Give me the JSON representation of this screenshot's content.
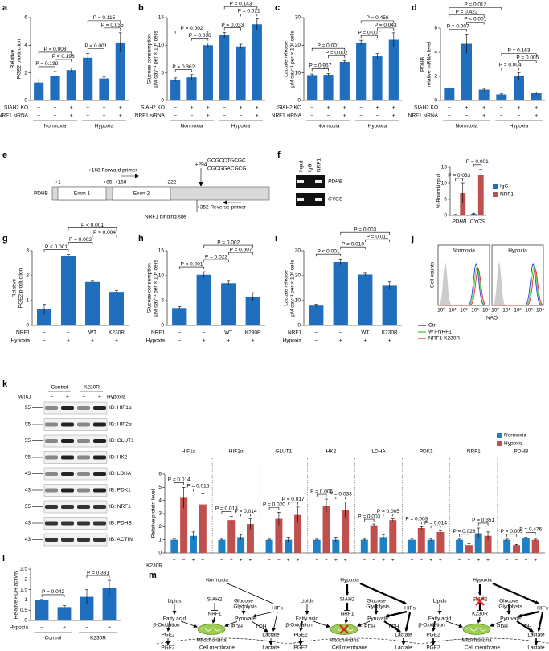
{
  "panel_labels": [
    "a",
    "b",
    "c",
    "d",
    "e",
    "f",
    "g",
    "h",
    "i",
    "j",
    "k",
    "l",
    "m"
  ],
  "chart_data": [
    {
      "type": "bar",
      "ylabel": [
        "Relative",
        "PGE2 production"
      ],
      "color": "#1f6fbe",
      "values": [
        1.3,
        1.75,
        2.2,
        3.1,
        1.6,
        4.2
      ],
      "errors": [
        0.2,
        0.35,
        0.15,
        0.3,
        0.1,
        0.7
      ],
      "ylim": [
        0,
        6
      ],
      "yticks": [
        0,
        2,
        4,
        6
      ],
      "conditions": [
        {
          "label": "SIAH2 KO",
          "signs": [
            "−",
            "+",
            "+",
            "−",
            "+",
            "+"
          ]
        },
        {
          "label": "NRF1 siRNA",
          "signs": [
            "−",
            "−",
            "+",
            "−",
            "−",
            "+"
          ]
        }
      ],
      "groups": [
        "Normoxia",
        "Hypoxia"
      ],
      "brackets": [
        {
          "label": "P = 0.198",
          "from": 0,
          "to": 1
        },
        {
          "label": "P = 0.198",
          "from": 1,
          "to": 2
        },
        {
          "label": "P = 0.008",
          "from": 0,
          "to": 2
        },
        {
          "label": "P < 0.001",
          "from": 3,
          "to": 4
        },
        {
          "label": "P = 0.035",
          "from": 4,
          "to": 5
        },
        {
          "label": "P = 0.115",
          "from": 3,
          "to": 5
        }
      ]
    },
    {
      "type": "bar",
      "ylabel": [
        "Glucose consumption",
        "μM day⁻¹ per × 10⁶ cells"
      ],
      "color": "#1f6fbe",
      "values": [
        3.8,
        4.2,
        10,
        11.8,
        9.8,
        13.8
      ],
      "errors": [
        0.3,
        0.5,
        0.4,
        0.5,
        0.4,
        1
      ],
      "ylim": [
        0,
        15
      ],
      "yticks": [
        0,
        5,
        10,
        15
      ],
      "conditions": [
        {
          "label": "SIAH2 KO",
          "signs": [
            "−",
            "+",
            "+",
            "−",
            "+",
            "+"
          ]
        },
        {
          "label": "NRF1 siRNA",
          "signs": [
            "−",
            "−",
            "+",
            "−",
            "−",
            "+"
          ]
        }
      ],
      "groups": [
        "Normoxia",
        "Hypoxia"
      ],
      "brackets": [
        {
          "label": "P = 0.362",
          "from": 0,
          "to": 1
        },
        {
          "label": "P = 0.036",
          "from": 1,
          "to": 2
        },
        {
          "label": "P = 0.002",
          "from": 0,
          "to": 2
        },
        {
          "label": "P = 0.033",
          "from": 3,
          "to": 4
        },
        {
          "label": "P = 0.021",
          "from": 4,
          "to": 5
        },
        {
          "label": "P = 0.143",
          "from": 3,
          "to": 5
        }
      ]
    },
    {
      "type": "bar",
      "ylabel": [
        "Lactate release",
        "μM day⁻¹ per × 10⁶ cells"
      ],
      "color": "#1f6fbe",
      "values": [
        9.2,
        9.3,
        14,
        21,
        16,
        22
      ],
      "errors": [
        0.4,
        0.5,
        0.5,
        0.8,
        1,
        2.5
      ],
      "ylim": [
        0,
        30
      ],
      "yticks": [
        0,
        10,
        20,
        30
      ],
      "conditions": [
        {
          "label": "SIAH2 KO",
          "signs": [
            "−",
            "+",
            "+",
            "−",
            "+",
            "+"
          ]
        },
        {
          "label": "NRF1 siRNA",
          "signs": [
            "−",
            "−",
            "+",
            "−",
            "−",
            "+"
          ]
        }
      ],
      "groups": [
        "Normoxia",
        "Hypoxia"
      ],
      "brackets": [
        {
          "label": "P = 0.967",
          "from": 0,
          "to": 1
        },
        {
          "label": "P = 0.002",
          "from": 1,
          "to": 2
        },
        {
          "label": "P = 0.001",
          "from": 0,
          "to": 2
        },
        {
          "label": "P = 0.007",
          "from": 3,
          "to": 4
        },
        {
          "label": "P = 0.043",
          "from": 4,
          "to": 5
        },
        {
          "label": "P = 0.456",
          "from": 3,
          "to": 5
        }
      ]
    },
    {
      "type": "bar",
      "ylabel": [
        "PDHB",
        "relative mRNA level"
      ],
      "color": "#1f6fbe",
      "values": [
        1,
        4.7,
        0.9,
        0.5,
        2,
        0.6
      ],
      "errors": [
        0.05,
        0.8,
        0.1,
        0.05,
        0.3,
        0.1
      ],
      "ylim": [
        0,
        6
      ],
      "yticks": [
        0,
        2,
        4,
        6
      ],
      "conditions": [
        {
          "label": "SIAH2 KO",
          "signs": [
            "−",
            "+",
            "+",
            "−",
            "+",
            "+"
          ]
        },
        {
          "label": "NRF1 siRNA",
          "signs": [
            "−",
            "−",
            "+",
            "−",
            "−",
            "+"
          ]
        }
      ],
      "groups": [
        "Normoxia",
        "Hypoxia"
      ],
      "brackets": [
        {
          "label": "P = 0.007",
          "from": 0,
          "to": 1
        },
        {
          "label": "P < 0.001",
          "from": 1,
          "to": 2
        },
        {
          "label": "P = 0.422",
          "from": 0,
          "to": 2
        },
        {
          "label": "P = 0.012",
          "from": 0,
          "to": 3
        },
        {
          "label": "P = 0.004",
          "from": 3,
          "to": 4
        },
        {
          "label": "P = 0.005",
          "from": 4,
          "to": 5
        },
        {
          "label": "P = 0.163",
          "from": 3,
          "to": 5
        }
      ]
    },
    {
      "type": "grouped_bar",
      "ylabel": [
        "% Bound/input"
      ],
      "ylim": [
        0,
        15
      ],
      "yticks": [
        0,
        5,
        10,
        15
      ],
      "legend": "right",
      "group_labels": "bottom",
      "separators": false,
      "series": [
        {
          "name": "IgG",
          "color": "#1f6fbe"
        },
        {
          "name": "NRF1",
          "color": "#c0504d"
        }
      ],
      "groups": [
        {
          "label": "PDHB",
          "values": [
            0.2,
            7
          ],
          "errors": [
            0.1,
            3
          ],
          "brackets": [
            {
              "label": "P = 0.033",
              "from": 0,
              "to": 1
            }
          ]
        },
        {
          "label": "CYCS",
          "values": [
            0.5,
            12.5
          ],
          "errors": [
            0.2,
            1.8
          ],
          "brackets": [
            {
              "label": "P = 0.001",
              "from": 0,
              "to": 1
            }
          ]
        }
      ]
    },
    {
      "type": "bar",
      "ylabel": [
        "Relative",
        "PGE2 production"
      ],
      "color": "#1f6fbe",
      "values": [
        0.65,
        2.8,
        1.75,
        1.35
      ],
      "errors": [
        0.2,
        0.05,
        0.03,
        0.05
      ],
      "ylim": [
        0,
        3
      ],
      "yticks": [
        0,
        1,
        2,
        3
      ],
      "conditions": [
        {
          "label": "NRF1",
          "signs": [
            "−",
            "−",
            "WT",
            "K230R"
          ]
        },
        {
          "label": "Hypoxia",
          "signs": [
            "−",
            "+",
            "+",
            "+"
          ]
        }
      ],
      "brackets": [
        {
          "label": "P < 0.001",
          "from": 0,
          "to": 1
        },
        {
          "label": "P = 0.002",
          "from": 1,
          "to": 2
        },
        {
          "label": "P = 0.004",
          "from": 2,
          "to": 3
        },
        {
          "label": "P < 0.001",
          "from": 1,
          "to": 3
        }
      ]
    },
    {
      "type": "bar",
      "ylabel": [
        "Glucose consumption",
        "μM day⁻¹ per × 10⁶ cells"
      ],
      "color": "#1f6fbe",
      "values": [
        3.5,
        10.2,
        8.5,
        5.8
      ],
      "errors": [
        0.3,
        0.6,
        0.4,
        0.8
      ],
      "ylim": [
        0,
        15
      ],
      "yticks": [
        0,
        5,
        10,
        15
      ],
      "conditions": [
        {
          "label": "NRF1",
          "signs": [
            "−",
            "−",
            "WT",
            "K230R"
          ]
        },
        {
          "label": "Hypoxia",
          "signs": [
            "−",
            "+",
            "+",
            "+"
          ]
        }
      ],
      "brackets": [
        {
          "label": "P < 0.001",
          "from": 0,
          "to": 1
        },
        {
          "label": "P = 0.022",
          "from": 1,
          "to": 2
        },
        {
          "label": "P = 0.007",
          "from": 2,
          "to": 3
        },
        {
          "label": "P = 0.002",
          "from": 1,
          "to": 3
        }
      ]
    },
    {
      "type": "bar",
      "ylabel": [
        "Lactate release",
        "μM day⁻¹ per × 10⁶ cells"
      ],
      "color": "#1f6fbe",
      "values": [
        8,
        25.5,
        20.5,
        16
      ],
      "errors": [
        0.5,
        1.2,
        0.5,
        1.5
      ],
      "ylim": [
        0,
        30
      ],
      "yticks": [
        0,
        10,
        20,
        30
      ],
      "conditions": [
        {
          "label": "NRF1",
          "signs": [
            "−",
            "−",
            "WT",
            "K230R"
          ]
        },
        {
          "label": "Hypoxia",
          "signs": [
            "−",
            "+",
            "+",
            "+"
          ]
        }
      ],
      "brackets": [
        {
          "label": "P < 0.001",
          "from": 0,
          "to": 1
        },
        {
          "label": "P = 0.010",
          "from": 1,
          "to": 2
        },
        {
          "label": "P = 0.011",
          "from": 2,
          "to": 3
        },
        {
          "label": "P = 0.003",
          "from": 1,
          "to": 3
        }
      ]
    },
    {
      "type": "grouped_bar",
      "ylabel": [
        "Relative protein level"
      ],
      "ylim": [
        0,
        6
      ],
      "yticks": [
        0,
        1,
        2,
        3,
        4,
        5,
        6
      ],
      "legend": "top-right",
      "group_labels": "top",
      "separators": true,
      "series": [
        {
          "name": "Normoxia",
          "color": "#1f80c8"
        },
        {
          "name": "Hypoxia",
          "color": "#c0504d"
        }
      ],
      "conditions": [
        {
          "label": "K230R",
          "signs": [
            "−",
            "−",
            "+",
            "+"
          ]
        }
      ],
      "groups": [
        {
          "label": "HIF1α",
          "values": [
            1,
            4.2,
            1.3,
            3.7
          ],
          "errors": [
            0.05,
            0.8,
            0.3,
            0.8
          ],
          "brackets": [
            {
              "label": "P = 0.014",
              "from": 0,
              "to": 1
            },
            {
              "label": "P = 0.015",
              "from": 2,
              "to": 3
            }
          ]
        },
        {
          "label": "HIF2α",
          "values": [
            1,
            2.5,
            1.2,
            2.2
          ],
          "errors": [
            0.05,
            0.3,
            0.2,
            0.4
          ],
          "brackets": [
            {
              "label": "P = 0.013",
              "from": 0,
              "to": 1
            },
            {
              "label": "P = 0.014",
              "from": 2,
              "to": 3
            }
          ]
        },
        {
          "label": "GLUT1",
          "values": [
            1,
            2.6,
            1,
            2.9
          ],
          "errors": [
            0.05,
            0.5,
            0.2,
            0.6
          ],
          "brackets": [
            {
              "label": "P = 0.020",
              "from": 0,
              "to": 1
            },
            {
              "label": "P = 0.017",
              "from": 2,
              "to": 3
            }
          ]
        },
        {
          "label": "HK2",
          "values": [
            1,
            3.6,
            1,
            3.3
          ],
          "errors": [
            0.05,
            0.5,
            0.2,
            0.6
          ],
          "brackets": [
            {
              "label": "P = 0.006",
              "from": 0,
              "to": 1
            },
            {
              "label": "P = 0.033",
              "from": 2,
              "to": 3
            }
          ]
        },
        {
          "label": "LDHA",
          "values": [
            1,
            2.1,
            1.2,
            2.5
          ],
          "errors": [
            0.05,
            0.1,
            0.2,
            0.1
          ],
          "brackets": [
            {
              "label": "P = 0.003",
              "from": 0,
              "to": 1
            },
            {
              "label": "P = 0.005",
              "from": 2,
              "to": 3
            }
          ]
        },
        {
          "label": "PDK1",
          "values": [
            1,
            1.9,
            1,
            1.6
          ],
          "errors": [
            0.05,
            0.1,
            0.1,
            0.1
          ],
          "brackets": [
            {
              "label": "P = 0.003",
              "from": 0,
              "to": 1
            },
            {
              "label": "P = 0.014",
              "from": 2,
              "to": 3
            }
          ]
        },
        {
          "label": "NRF1",
          "values": [
            1,
            0.6,
            1.5,
            1.3
          ],
          "errors": [
            0.05,
            0.1,
            0.4,
            0.3
          ],
          "brackets": [
            {
              "label": "P = 0.026",
              "from": 0,
              "to": 1
            },
            {
              "label": "P = 0.351",
              "from": 2,
              "to": 3
            }
          ]
        },
        {
          "label": "PDHB",
          "values": [
            1,
            0.6,
            1.15,
            1
          ],
          "errors": [
            0.05,
            0.05,
            0.05,
            0.05
          ],
          "brackets": [
            {
              "label": "P = 0.005",
              "from": 0,
              "to": 1
            },
            {
              "label": "P = 0.476",
              "from": 2,
              "to": 3
            }
          ]
        }
      ]
    },
    {
      "type": "bar",
      "ylabel": [
        "Relative PDH activity"
      ],
      "color": "#1f6fbe",
      "values": [
        1,
        0.65,
        1.15,
        1.6
      ],
      "errors": [
        0.02,
        0.08,
        0.35,
        0.35
      ],
      "ylim": [
        0,
        2.5
      ],
      "yticks": [
        0,
        0.5,
        1,
        1.5,
        2,
        2.5
      ],
      "conditions": [
        {
          "label": "Hypoxia",
          "signs": [
            "−",
            "+",
            "−",
            "+"
          ]
        }
      ],
      "groups": [
        "Control",
        "K230R"
      ],
      "brackets": [
        {
          "label": "P = 0.042",
          "from": 0,
          "to": 1
        },
        {
          "label": "P = 0.381",
          "from": 2,
          "to": 3
        }
      ]
    }
  ],
  "e": {
    "gene": "PDHB",
    "positions": [
      "+1",
      "+85",
      "+168",
      "+222",
      "+294"
    ],
    "exons": [
      "Exon 1",
      "Exon 2"
    ],
    "forward_primer": "+168 Forward primer",
    "sequence": [
      "GCGCCTGCGC",
      "CGCGGACGCG"
    ],
    "binding_site": "NRF1 binding site",
    "reverse_primer": "+352 Reverse primer"
  },
  "f_gel": {
    "lanes": [
      "Input",
      "IgG",
      "NRF1"
    ],
    "genes": [
      "PDHB",
      "CYCS"
    ]
  },
  "j": {
    "conditions": [
      "Normoxia",
      "Hypoxia"
    ],
    "ylabel": "Cell counts",
    "xlabel": "NAO",
    "xticks": [
      "10⁰",
      "10¹",
      "10²",
      "10³",
      "10⁴"
    ],
    "legend": [
      {
        "name": "Ctr.",
        "color": "#1b2fd0"
      },
      {
        "name": "WT-NRF1",
        "color": "#2fcc2f"
      },
      {
        "name": "NRF1-K230R",
        "color": "#dd2020"
      }
    ]
  },
  "k_blot": {
    "groups": [
      "Control",
      "K230R"
    ],
    "mr": "Mr(K)",
    "condition": "Hypoxia",
    "signs": [
      "−",
      "+",
      "−",
      "+"
    ],
    "rows": [
      {
        "marker": "95",
        "label": "IB: HIF1α"
      },
      {
        "marker": "95",
        "label": "IB: HIF2α"
      },
      {
        "marker": "55",
        "label": "IB: GLUT1"
      },
      {
        "marker": "95",
        "label": "IB: HK2"
      },
      {
        "marker": "43",
        "label": "IB: LDHA"
      },
      {
        "marker": "43",
        "label": "IB: PDK1"
      },
      {
        "marker": "55",
        "label": "IB: NRF1"
      },
      {
        "marker": "43",
        "label": "IB: PDHB"
      },
      {
        "marker": "43",
        "label": "IB: ACTIN"
      }
    ]
  },
  "m": {
    "titles": [
      "Normoxia",
      "Hypoxia",
      "Hypoxia"
    ],
    "mutant": "K230R",
    "labels": {
      "lipids": "Lipids",
      "siah2": "SIAH2",
      "glucose": "Glucose",
      "glycolysis": "Glycolysis",
      "hifs": "HIFs",
      "nrf1": "NRF1",
      "fatty_acid": "Fatty acid",
      "beta_oxidation": "β-Oxidation",
      "pyruvate": "Pyruvate",
      "pdh": "PDH",
      "ldh": "LDH",
      "mitochondria": "Mitochondria",
      "pge2": "PGE2",
      "lactate": "Lactate",
      "membrane": "Cell membrane"
    }
  }
}
